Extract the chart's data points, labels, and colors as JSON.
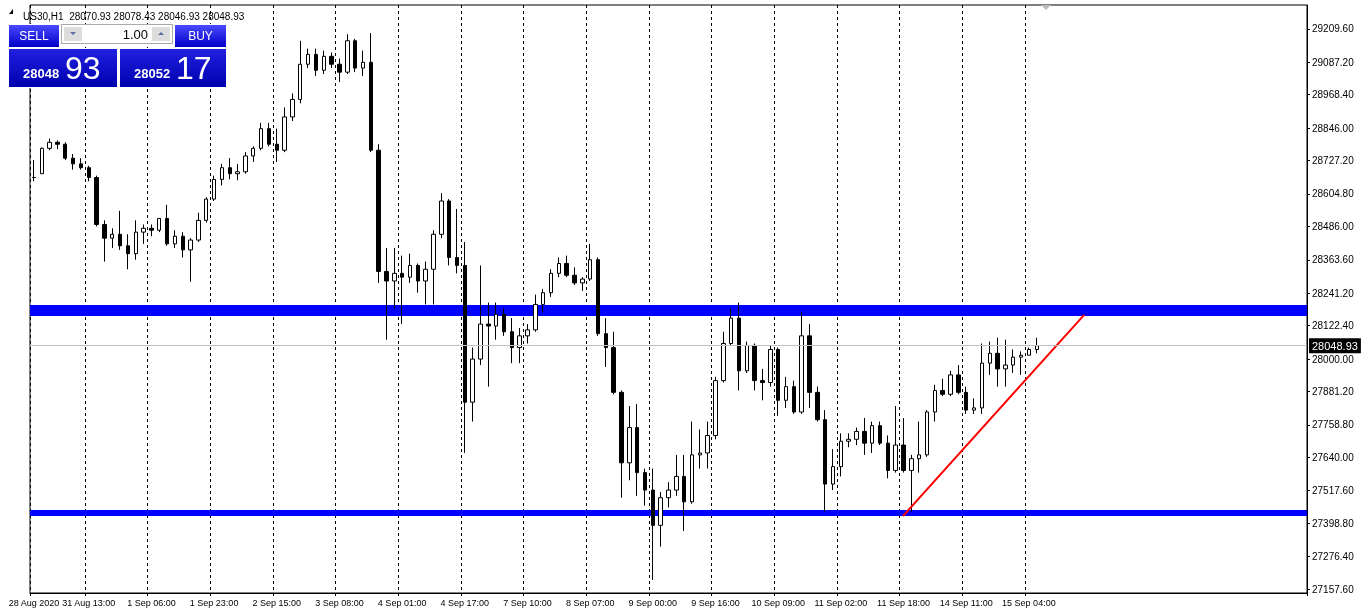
{
  "chart_data": {
    "type": "candlestick",
    "title": "US30,H1  28070.93 28078.43 28046.93 28048.93",
    "annotations": [
      "SELL",
      "1.00",
      "BUY",
      "28048",
      "93",
      "28052",
      "17"
    ],
    "categories": [
      "28 Aug 2020",
      null,
      null,
      null,
      null,
      null,
      null,
      "31 Aug 13:00",
      null,
      null,
      null,
      null,
      null,
      null,
      null,
      "1 Sep 06:00",
      null,
      null,
      null,
      null,
      null,
      null,
      null,
      "1 Sep 23:00",
      null,
      null,
      null,
      null,
      null,
      null,
      null,
      "2 Sep 15:00",
      null,
      null,
      null,
      null,
      null,
      null,
      null,
      "3 Sep 08:00",
      null,
      null,
      null,
      null,
      null,
      null,
      null,
      "4 Sep 01:00",
      null,
      null,
      null,
      null,
      null,
      null,
      null,
      "4 Sep 17:00",
      null,
      null,
      null,
      null,
      null,
      null,
      null,
      "7 Sep 10:00",
      null,
      null,
      null,
      null,
      null,
      null,
      null,
      "8 Sep 07:00",
      null,
      null,
      null,
      null,
      null,
      null,
      null,
      "9 Sep 00:00",
      null,
      null,
      null,
      null,
      null,
      null,
      null,
      "9 Sep 16:00",
      null,
      null,
      null,
      null,
      null,
      null,
      null,
      "10 Sep 09:00",
      null,
      null,
      null,
      null,
      null,
      null,
      null,
      "11 Sep 02:00",
      null,
      null,
      null,
      null,
      null,
      null,
      null,
      "11 Sep 18:00",
      null,
      null,
      null,
      null,
      null,
      null,
      null,
      "14 Sep 11:00",
      null,
      null,
      null,
      null,
      null,
      null,
      null,
      "15 Sep 04:00",
      null,
      null,
      null,
      null,
      null,
      null,
      null,
      null,
      null,
      null,
      null,
      null,
      null,
      null,
      null,
      null,
      null,
      null,
      null,
      null,
      null,
      null,
      null,
      null,
      null,
      null,
      null,
      null,
      null,
      null,
      null,
      null,
      null,
      null,
      null
    ],
    "ohlc": [
      [
        28665,
        28729,
        28651,
        28665
      ],
      [
        28679,
        28775,
        28679,
        28772
      ],
      [
        28772,
        28808,
        28765,
        28794
      ],
      [
        28794,
        28801,
        28769,
        28787
      ],
      [
        28787,
        28794,
        28729,
        28736
      ],
      [
        28736,
        28751,
        28694,
        28715
      ],
      [
        28715,
        28736,
        28694,
        28701
      ],
      [
        28701,
        28708,
        28651,
        28665
      ],
      [
        28665,
        28672,
        28486,
        28493
      ],
      [
        28493,
        28508,
        28357,
        28443
      ],
      [
        28443,
        28479,
        28407,
        28457
      ],
      [
        28457,
        28543,
        28400,
        28415
      ],
      [
        28415,
        28457,
        28329,
        28386
      ],
      [
        28386,
        28508,
        28364,
        28465
      ],
      [
        28465,
        28493,
        28422,
        28479
      ],
      [
        28479,
        28493,
        28450,
        28472
      ],
      [
        28472,
        28515,
        28465,
        28515
      ],
      [
        28515,
        28565,
        28415,
        28422
      ],
      [
        28422,
        28472,
        28407,
        28450
      ],
      [
        28450,
        28465,
        28372,
        28400
      ],
      [
        28400,
        28443,
        28283,
        28436
      ],
      [
        28436,
        28536,
        28429,
        28508
      ],
      [
        28508,
        28593,
        28500,
        28586
      ],
      [
        28586,
        28672,
        28579,
        28658
      ],
      [
        28658,
        28715,
        28636,
        28701
      ],
      [
        28701,
        28736,
        28658,
        28679
      ],
      [
        28679,
        28715,
        28655,
        28686
      ],
      [
        28686,
        28758,
        28679,
        28744
      ],
      [
        28744,
        28779,
        28722,
        28772
      ],
      [
        28772,
        28865,
        28765,
        28844
      ],
      [
        28844,
        28865,
        28779,
        28787
      ],
      [
        28787,
        28844,
        28722,
        28765
      ],
      [
        28765,
        28922,
        28758,
        28887
      ],
      [
        28887,
        28973,
        28872,
        28951
      ],
      [
        28951,
        29166,
        28937,
        29080
      ],
      [
        29080,
        29137,
        29066,
        29116
      ],
      [
        29116,
        29137,
        29037,
        29058
      ],
      [
        29058,
        29130,
        29044,
        29109
      ],
      [
        29109,
        29123,
        29066,
        29080
      ],
      [
        29080,
        29101,
        29015,
        29051
      ],
      [
        29051,
        29190,
        29044,
        29166
      ],
      [
        29166,
        29173,
        29051,
        29066
      ],
      [
        29066,
        29130,
        29037,
        29087
      ],
      [
        29087,
        29194,
        28758,
        28765
      ],
      [
        28765,
        28787,
        28279,
        28321
      ],
      [
        28321,
        28407,
        28071,
        28286
      ],
      [
        28286,
        28407,
        28185,
        28314
      ],
      [
        28314,
        28379,
        28128,
        28300
      ],
      [
        28300,
        28386,
        28279,
        28343
      ],
      [
        28343,
        28350,
        28243,
        28286
      ],
      [
        28286,
        28357,
        28200,
        28329
      ],
      [
        28329,
        28472,
        28200,
        28457
      ],
      [
        28457,
        28608,
        28443,
        28579
      ],
      [
        28579,
        28586,
        28343,
        28372
      ],
      [
        28372,
        28550,
        28314,
        28343
      ],
      [
        28343,
        28429,
        27656,
        27842
      ],
      [
        27842,
        28042,
        27771,
        28000
      ],
      [
        28000,
        28343,
        27978,
        28128
      ],
      [
        28128,
        28207,
        27899,
        28121
      ],
      [
        28121,
        28207,
        28071,
        28164
      ],
      [
        28164,
        28185,
        28085,
        28100
      ],
      [
        28100,
        28150,
        27985,
        28042
      ],
      [
        28042,
        28114,
        27985,
        28085
      ],
      [
        28085,
        28128,
        28057,
        28107
      ],
      [
        28107,
        28236,
        28100,
        28200
      ],
      [
        28200,
        28257,
        28171,
        28243
      ],
      [
        28243,
        28329,
        28228,
        28314
      ],
      [
        28314,
        28372,
        28300,
        28350
      ],
      [
        28350,
        28379,
        28300,
        28307
      ],
      [
        28307,
        28336,
        28271,
        28279
      ],
      [
        28279,
        28300,
        28250,
        28293
      ],
      [
        28293,
        28422,
        28286,
        28364
      ],
      [
        28364,
        28372,
        28085,
        28093
      ],
      [
        28093,
        28150,
        27971,
        28042
      ],
      [
        28042,
        28100,
        27871,
        27878
      ],
      [
        27878,
        27885,
        27492,
        27620
      ],
      [
        27620,
        27828,
        27556,
        27749
      ],
      [
        27749,
        27835,
        27499,
        27584
      ],
      [
        27584,
        27599,
        27463,
        27520
      ],
      [
        27520,
        27599,
        27191,
        27391
      ],
      [
        27391,
        27513,
        27313,
        27492
      ],
      [
        27492,
        27549,
        27456,
        27520
      ],
      [
        27520,
        27649,
        27499,
        27570
      ],
      [
        27570,
        27649,
        27370,
        27477
      ],
      [
        27477,
        27771,
        27470,
        27649
      ],
      [
        27649,
        27742,
        27599,
        27656
      ],
      [
        27656,
        27771,
        27599,
        27720
      ],
      [
        27720,
        27935,
        27706,
        27921
      ],
      [
        27921,
        28100,
        27914,
        28057
      ],
      [
        28057,
        28185,
        28050,
        28150
      ],
      [
        28150,
        28207,
        27885,
        27957
      ],
      [
        27957,
        28064,
        27949,
        28050
      ],
      [
        28050,
        28057,
        27885,
        27921
      ],
      [
        27921,
        27964,
        27849,
        27914
      ],
      [
        27914,
        28050,
        27899,
        28035
      ],
      [
        28035,
        28042,
        27792,
        27849
      ],
      [
        27849,
        27935,
        27821,
        27899
      ],
      [
        27899,
        27921,
        27799,
        27806
      ],
      [
        27806,
        28171,
        27799,
        28085
      ],
      [
        28085,
        28128,
        27821,
        27878
      ],
      [
        27878,
        27899,
        27771,
        27778
      ],
      [
        27778,
        27813,
        27441,
        27542
      ],
      [
        27542,
        27670,
        27520,
        27606
      ],
      [
        27606,
        27728,
        27570,
        27699
      ],
      [
        27699,
        27728,
        27677,
        27706
      ],
      [
        27706,
        27749,
        27685,
        27735
      ],
      [
        27735,
        27784,
        27649,
        27692
      ],
      [
        27692,
        27771,
        27656,
        27756
      ],
      [
        27756,
        27771,
        27685,
        27692
      ],
      [
        27692,
        27720,
        27563,
        27592
      ],
      [
        27592,
        27828,
        27584,
        27685
      ],
      [
        27685,
        27784,
        27584,
        27592
      ],
      [
        27592,
        27649,
        27441,
        27635
      ],
      [
        27635,
        27771,
        27584,
        27649
      ],
      [
        27649,
        27813,
        27642,
        27806
      ],
      [
        27806,
        27906,
        27771,
        27885
      ],
      [
        27885,
        27928,
        27864,
        27871
      ],
      [
        27871,
        27957,
        27864,
        27942
      ],
      [
        27942,
        27978,
        27871,
        27878
      ],
      [
        27878,
        27899,
        27799,
        27813
      ],
      [
        27813,
        27856,
        27799,
        27821
      ],
      [
        27821,
        28057,
        27799,
        27985
      ],
      [
        27985,
        28064,
        27942,
        28021
      ],
      [
        28021,
        28078,
        27899,
        27964
      ],
      [
        27964,
        28071,
        27899,
        27978
      ],
      [
        27978,
        28035,
        27949,
        28007
      ],
      [
        28007,
        28028,
        27942,
        28014
      ],
      [
        28014,
        28042,
        28014,
        28035
      ],
      [
        28035,
        28078,
        28021,
        28049
      ],
      null,
      null,
      null,
      null,
      null,
      null,
      null,
      null,
      null,
      null,
      null,
      null,
      null,
      null,
      null,
      null,
      null,
      null,
      null,
      null,
      null,
      null,
      null,
      null,
      null,
      null,
      null,
      null,
      null,
      null,
      null,
      null,
      null,
      null
    ],
    "series": [
      {
        "type": "line",
        "color": "#ff0000",
        "values": [
          null,
          null,
          null,
          null,
          null,
          null,
          null,
          null,
          null,
          null,
          null,
          null,
          null,
          null,
          null,
          null,
          null,
          null,
          null,
          null,
          null,
          null,
          null,
          null,
          null,
          null,
          null,
          null,
          null,
          null,
          null,
          null,
          null,
          null,
          null,
          null,
          null,
          null,
          null,
          null,
          null,
          null,
          null,
          null,
          null,
          null,
          null,
          null,
          null,
          null,
          null,
          null,
          null,
          null,
          null,
          null,
          null,
          null,
          null,
          null,
          null,
          null,
          null,
          null,
          null,
          null,
          null,
          null,
          null,
          null,
          null,
          null,
          null,
          null,
          null,
          null,
          null,
          null,
          null,
          null,
          null,
          null,
          null,
          null,
          null,
          null,
          null,
          null,
          null,
          null,
          null,
          null,
          null,
          null,
          null,
          null,
          null,
          null,
          null,
          null,
          null,
          null,
          null,
          null,
          null,
          null,
          null,
          null,
          null,
          null,
          null,
          27427,
          null,
          null,
          null,
          null,
          null,
          null,
          null,
          null,
          null,
          null,
          null,
          null,
          null,
          null,
          null,
          null,
          null,
          null,
          null,
          null,
          null,
          null,
          28160,
          null,
          null,
          null,
          null,
          null,
          null,
          null,
          null,
          null,
          null,
          null,
          null,
          null,
          null,
          null,
          null,
          null,
          null,
          null,
          null,
          null,
          null,
          null,
          null,
          null,
          null,
          null,
          null
        ]
      }
    ],
    "ylim": [
      27143,
      29297
    ],
    "yticks": [
      {
        "value": 27157.6,
        "label": "27157.60"
      },
      {
        "value": 27276.4,
        "label": "27276.40"
      },
      {
        "value": 27398.8,
        "label": "27398.80"
      },
      {
        "value": 27517.6,
        "label": "27517.60"
      },
      {
        "value": 27640,
        "label": "27640.00"
      },
      {
        "value": 27758.8,
        "label": "27758.80"
      },
      {
        "value": 27881.2,
        "label": "27881.20"
      },
      {
        "value": 28000,
        "label": "28000.00"
      },
      {
        "value": 28122.4,
        "label": "28122.40"
      },
      {
        "value": 28241.2,
        "label": "28241.20"
      },
      {
        "value": 28363.6,
        "label": "28363.60"
      },
      {
        "value": 28486,
        "label": "28486.00"
      },
      {
        "value": 28604.8,
        "label": "28604.80"
      },
      {
        "value": 28727.2,
        "label": "28727.20"
      },
      {
        "value": 28846,
        "label": "28846.00"
      },
      {
        "value": 28968.4,
        "label": "28968.40"
      },
      {
        "value": 29087.2,
        "label": "29087.20"
      },
      {
        "value": 29209.6,
        "label": "29209.60"
      }
    ],
    "bands": [
      {
        "axis": "y",
        "from": 28158,
        "to": 28198,
        "color": "#0000ff"
      },
      {
        "axis": "y",
        "from": 27425,
        "to": 27447,
        "color": "#0000ff"
      }
    ],
    "ref_lines": [
      {
        "axis": "y",
        "value": 28048.93,
        "label": "28048.93",
        "color": "#c0c0c0"
      }
    ],
    "grid": "x"
  }
}
